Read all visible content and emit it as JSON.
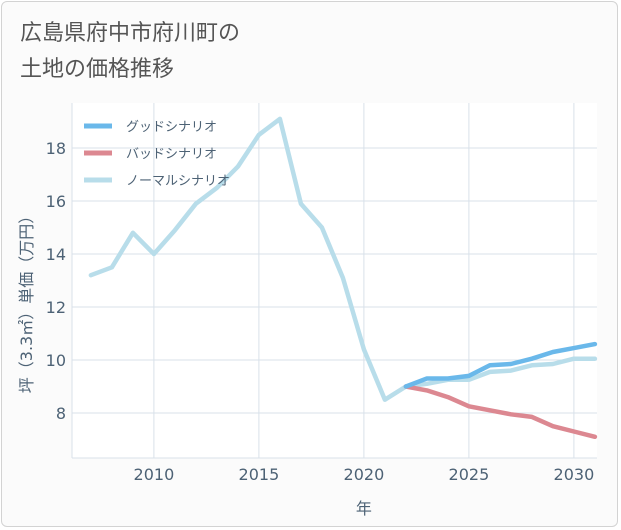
{
  "title_lines": [
    "広島県府中市府川町の",
    "土地の価格推移"
  ],
  "colors": {
    "good": "#6ab8ea",
    "bad": "#dc8891",
    "normal": "#b8ddea",
    "grid": "#d9e1ea",
    "text": "#4d6275",
    "plot_bg": "#ffffff"
  },
  "chart_data": {
    "type": "line",
    "title": "広島県府中市府川町の土地の価格推移",
    "xlabel": "年",
    "ylabel": "坪（3.3㎡）単価（万円）",
    "xlim": [
      2006.1,
      2031.1
    ],
    "ylim": [
      6.3,
      19.7
    ],
    "xticks": [
      2010,
      2015,
      2020,
      2025,
      2030
    ],
    "yticks": [
      8,
      10,
      12,
      14,
      16,
      18
    ],
    "grid": true,
    "legend_position": "top-left",
    "series": [
      {
        "name": "グッドシナリオ",
        "key": "good",
        "x": [
          2022,
          2023,
          2024,
          2025,
          2026,
          2027,
          2028,
          2029,
          2030,
          2031
        ],
        "values": [
          9.0,
          9.3,
          9.3,
          9.4,
          9.8,
          9.85,
          10.05,
          10.3,
          10.45,
          10.6
        ]
      },
      {
        "name": "バッドシナリオ",
        "key": "bad",
        "x": [
          2022,
          2023,
          2024,
          2025,
          2026,
          2027,
          2028,
          2029,
          2030,
          2031
        ],
        "values": [
          9.0,
          8.85,
          8.6,
          8.25,
          8.1,
          7.95,
          7.85,
          7.5,
          7.3,
          7.1
        ]
      },
      {
        "name": "ノーマルシナリオ",
        "key": "normal",
        "x": [
          2007,
          2008,
          2009,
          2010,
          2011,
          2012,
          2013,
          2014,
          2015,
          2016,
          2017,
          2018,
          2019,
          2020,
          2021,
          2022,
          2023,
          2024,
          2025,
          2026,
          2027,
          2028,
          2029,
          2030,
          2031
        ],
        "values": [
          13.2,
          13.5,
          14.8,
          14.0,
          14.9,
          15.9,
          16.5,
          17.3,
          18.5,
          19.1,
          15.9,
          15.0,
          13.1,
          10.4,
          8.5,
          9.0,
          9.1,
          9.25,
          9.25,
          9.55,
          9.6,
          9.8,
          9.85,
          10.05,
          10.05
        ]
      }
    ]
  }
}
